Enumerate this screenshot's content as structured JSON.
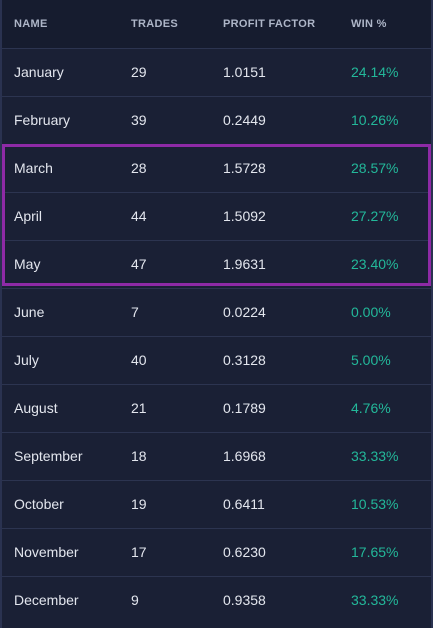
{
  "table": {
    "headers": {
      "name": "NAME",
      "trades": "TRADES",
      "profit_factor": "PROFIT FACTOR",
      "win": "WIN %"
    },
    "rows": [
      {
        "name": "January",
        "trades": "29",
        "profit_factor": "1.0151",
        "win": "24.14%"
      },
      {
        "name": "February",
        "trades": "39",
        "profit_factor": "0.2449",
        "win": "10.26%"
      },
      {
        "name": "March",
        "trades": "28",
        "profit_factor": "1.5728",
        "win": "28.57%"
      },
      {
        "name": "April",
        "trades": "44",
        "profit_factor": "1.5092",
        "win": "27.27%"
      },
      {
        "name": "May",
        "trades": "47",
        "profit_factor": "1.9631",
        "win": "23.40%"
      },
      {
        "name": "June",
        "trades": "7",
        "profit_factor": "0.0224",
        "win": "0.00%"
      },
      {
        "name": "July",
        "trades": "40",
        "profit_factor": "0.3128",
        "win": "5.00%"
      },
      {
        "name": "August",
        "trades": "21",
        "profit_factor": "0.1789",
        "win": "4.76%"
      },
      {
        "name": "September",
        "trades": "18",
        "profit_factor": "1.6968",
        "win": "33.33%"
      },
      {
        "name": "October",
        "trades": "19",
        "profit_factor": "0.6411",
        "win": "10.53%"
      },
      {
        "name": "November",
        "trades": "17",
        "profit_factor": "0.6230",
        "win": "17.65%"
      },
      {
        "name": "December",
        "trades": "9",
        "profit_factor": "0.9358",
        "win": "33.33%"
      }
    ]
  },
  "colors": {
    "background": "#1a2035",
    "header_background": "#161c2f",
    "win_text": "#23b89a",
    "highlight_border": "#8e2aa6"
  }
}
